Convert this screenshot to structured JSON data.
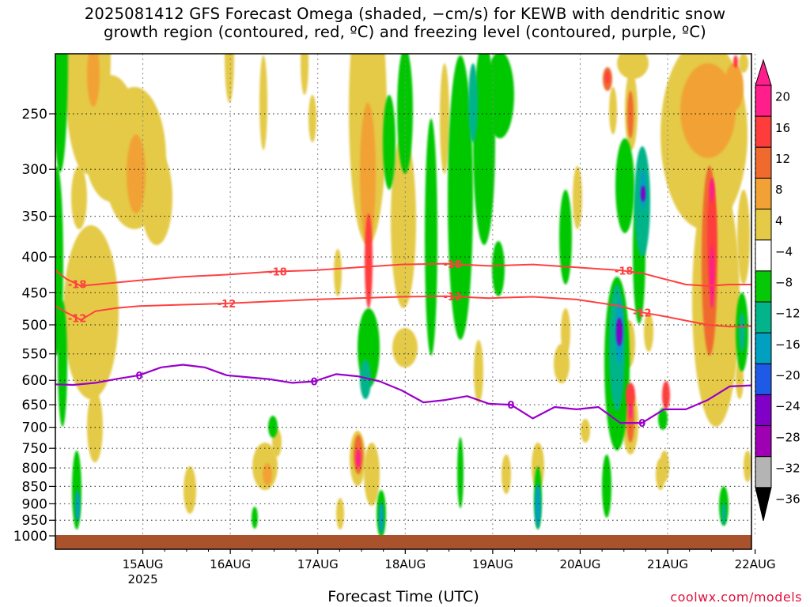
{
  "title": "2025081412 GFS Forecast Omega (shaded, −cm/s) for KEWB with dendritic snow\ngrowth region (contoured, red, ºC) and freezing level (contoured, purple, ºC)",
  "credit": "coolwx.com/models",
  "chart_data": {
    "type": "heatmap",
    "title": "2025081412 GFS Forecast Omega (shaded, −cm/s) for KEWB with dendritic snow growth region (contoured, red, ºC) and freezing level (contoured, purple, ºC)",
    "xlabel": "Forecast Time (UTC)",
    "ylabel": "",
    "x_ticks": [
      "15AUG",
      "16AUG",
      "17AUG",
      "18AUG",
      "19AUG",
      "20AUG",
      "21AUG",
      "22AUG"
    ],
    "x_tick_sublabel": "2025",
    "x_range_hours": [
      -11,
      180
    ],
    "y_ticks": [
      250,
      300,
      350,
      400,
      450,
      500,
      550,
      600,
      650,
      700,
      750,
      800,
      850,
      900,
      950,
      1000
    ],
    "ylim": [
      1000,
      200
    ],
    "y_scale": "log-pressure",
    "grid": true,
    "colorbar": {
      "labels": [
        "20",
        "16",
        "12",
        "8",
        "4",
        "−4",
        "−8",
        "−12",
        "−16",
        "−20",
        "−24",
        "−28",
        "−32",
        "−36"
      ],
      "colors": [
        "#ff1e8c",
        "#ff3c3c",
        "#f06a2e",
        "#f2a234",
        "#e4ca46",
        "#ffffff",
        "#06c806",
        "#03b48a",
        "#02a0c0",
        "#1e5ae6",
        "#8000c8",
        "#a000b4",
        "#b4b4b4",
        "#000000"
      ]
    },
    "dendritic_snow_contours": {
      "color": "#ff4040",
      "series": [
        {
          "name": "-18",
          "x": [
            -11,
            -8,
            -4,
            0,
            6,
            12,
            24,
            36,
            48,
            60,
            72,
            84,
            96,
            108,
            120,
            132,
            144,
            150,
            156,
            162,
            168,
            174,
            180
          ],
          "y": [
            418,
            430,
            440,
            438,
            435,
            432,
            427,
            424,
            420,
            418,
            414,
            410,
            409,
            412,
            410,
            414,
            418,
            422,
            430,
            438,
            440,
            438,
            438
          ]
        },
        {
          "name": "-12",
          "x": [
            -11,
            -8,
            -4,
            0,
            6,
            12,
            24,
            36,
            48,
            60,
            72,
            84,
            96,
            108,
            120,
            132,
            144,
            150,
            156,
            162,
            168,
            174,
            180
          ],
          "y": [
            470,
            480,
            492,
            478,
            473,
            470,
            468,
            466,
            463,
            460,
            458,
            456,
            455,
            458,
            456,
            460,
            470,
            480,
            486,
            493,
            500,
            503,
            502
          ]
        }
      ]
    },
    "freezing_level_contour": {
      "color": "#9900cc",
      "series": [
        {
          "name": "0",
          "x": [
            -11,
            -6,
            0,
            6,
            12,
            18,
            24,
            30,
            36,
            42,
            48,
            54,
            60,
            66,
            72,
            78,
            84,
            90,
            96,
            102,
            108,
            114,
            120,
            126,
            132,
            138,
            144,
            150,
            156,
            162,
            168,
            174,
            180
          ],
          "y": [
            608,
            609,
            605,
            597,
            590,
            575,
            570,
            575,
            590,
            594,
            598,
            605,
            602,
            588,
            592,
            602,
            620,
            645,
            640,
            632,
            648,
            650,
            680,
            655,
            660,
            655,
            690,
            690,
            660,
            660,
            640,
            612,
            610
          ]
        }
      ]
    }
  }
}
